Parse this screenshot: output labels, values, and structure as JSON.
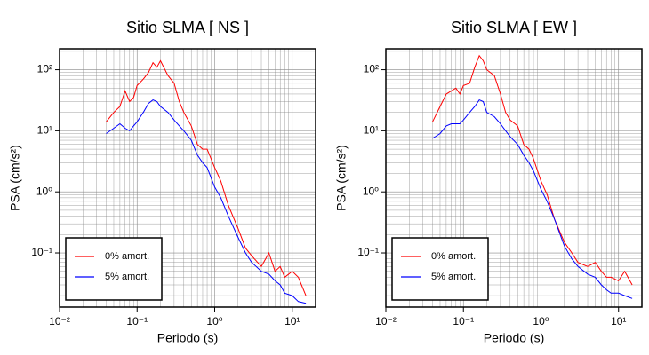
{
  "chart_data": [
    {
      "type": "line",
      "title": "Sitio SLMA [ NS ]",
      "x_label": "Periodo (s)",
      "y_label": "PSA (cm/s²)",
      "log_x": true,
      "log_y": true,
      "grid": true,
      "legend": "lower left",
      "xlim": [
        0.01,
        20
      ],
      "ylim": [
        0.013,
        220
      ],
      "xticks": [
        {
          "value": 0.01,
          "label": "10⁻²"
        },
        {
          "value": 0.1,
          "label": "10⁻¹"
        },
        {
          "value": 1,
          "label": "10⁰"
        },
        {
          "value": 10,
          "label": "10¹"
        }
      ],
      "yticks": [
        {
          "value": 0.1,
          "label": "10⁻¹"
        },
        {
          "value": 1,
          "label": "10⁰"
        },
        {
          "value": 10,
          "label": "10¹"
        },
        {
          "value": 100,
          "label": "10²"
        }
      ],
      "x": [
        0.04,
        0.05,
        0.06,
        0.07,
        0.08,
        0.09,
        0.1,
        0.12,
        0.14,
        0.16,
        0.18,
        0.2,
        0.25,
        0.3,
        0.35,
        0.4,
        0.5,
        0.6,
        0.7,
        0.8,
        1.0,
        1.2,
        1.5,
        2,
        2.5,
        3,
        4,
        5,
        6,
        7,
        8,
        10,
        12,
        15
      ],
      "series": [
        {
          "name": "0% amort.",
          "color": "#ff0000",
          "values": [
            14,
            20,
            25,
            45,
            30,
            35,
            55,
            70,
            90,
            130,
            110,
            140,
            80,
            60,
            30,
            20,
            12,
            6,
            5,
            5,
            2.5,
            1.5,
            0.6,
            0.25,
            0.12,
            0.09,
            0.06,
            0.1,
            0.05,
            0.06,
            0.04,
            0.05,
            0.04,
            0.02
          ]
        },
        {
          "name": "5% amort.",
          "color": "#0000ff",
          "values": [
            9,
            11,
            13,
            11,
            10,
            12,
            14,
            20,
            28,
            32,
            30,
            25,
            20,
            15,
            12,
            10,
            7,
            4,
            3,
            2.5,
            1.2,
            0.8,
            0.4,
            0.18,
            0.1,
            0.07,
            0.05,
            0.045,
            0.035,
            0.03,
            0.022,
            0.02,
            0.016,
            0.015
          ]
        }
      ]
    },
    {
      "type": "line",
      "title": "Sitio SLMA [ EW ]",
      "x_label": "Periodo (s)",
      "y_label": "PSA (cm/s²)",
      "log_x": true,
      "log_y": true,
      "grid": true,
      "legend": "lower left",
      "xlim": [
        0.01,
        20
      ],
      "ylim": [
        0.013,
        220
      ],
      "xticks": [
        {
          "value": 0.01,
          "label": "10⁻²"
        },
        {
          "value": 0.1,
          "label": "10⁻¹"
        },
        {
          "value": 1,
          "label": "10⁰"
        },
        {
          "value": 10,
          "label": "10¹"
        }
      ],
      "yticks": [
        {
          "value": 0.1,
          "label": "10⁻¹"
        },
        {
          "value": 1,
          "label": "10⁰"
        },
        {
          "value": 10,
          "label": "10¹"
        },
        {
          "value": 100,
          "label": "10²"
        }
      ],
      "x": [
        0.04,
        0.05,
        0.06,
        0.07,
        0.08,
        0.09,
        0.1,
        0.12,
        0.14,
        0.16,
        0.18,
        0.2,
        0.25,
        0.3,
        0.35,
        0.4,
        0.5,
        0.6,
        0.7,
        0.8,
        1.0,
        1.2,
        1.5,
        2,
        2.5,
        3,
        4,
        5,
        6,
        7,
        8,
        10,
        12,
        15
      ],
      "series": [
        {
          "name": "0% amort.",
          "color": "#ff0000",
          "values": [
            14,
            25,
            40,
            45,
            50,
            40,
            55,
            60,
            110,
            170,
            140,
            100,
            80,
            40,
            20,
            15,
            12,
            6,
            5,
            3.5,
            1.5,
            0.9,
            0.35,
            0.15,
            0.1,
            0.07,
            0.06,
            0.07,
            0.05,
            0.04,
            0.04,
            0.035,
            0.05,
            0.03
          ]
        },
        {
          "name": "5% amort.",
          "color": "#0000ff",
          "values": [
            7.5,
            9,
            12,
            13,
            13,
            13,
            15,
            20,
            25,
            32,
            30,
            20,
            17,
            13,
            10,
            8,
            6,
            4,
            3,
            2.2,
            1.1,
            0.7,
            0.35,
            0.13,
            0.08,
            0.06,
            0.045,
            0.04,
            0.03,
            0.025,
            0.022,
            0.022,
            0.02,
            0.018
          ]
        }
      ]
    }
  ]
}
